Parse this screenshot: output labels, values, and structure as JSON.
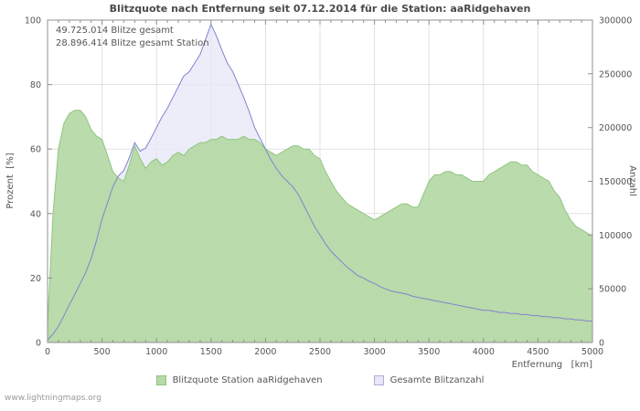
{
  "title": "Blitzquote nach Entfernung seit 07.12.2014 für die Station: aaRidgehaven",
  "watermark": "www.lightningmaps.org",
  "annotations": {
    "line1": "49.725.014 Blitze gesamt",
    "line2": "28.896.414 Blitze gesamt Station"
  },
  "legend": [
    {
      "label": "Blitzquote Station aaRidgehaven",
      "color": "#b6d9a7",
      "border": "#8fc681"
    },
    {
      "label": "Gesamte Blitzanzahl",
      "color": "#e9e7f8",
      "border": "#aeaed6"
    }
  ],
  "chart_data": {
    "type": "area",
    "title": "Blitzquote nach Entfernung seit 07.12.2014 für die Station: aaRidgehaven",
    "xlabel": "Entfernung   [km]",
    "ylabel_left": "Prozent  [%]",
    "ylabel_right": "Anzahl",
    "x_min": 0,
    "x_max": 5000,
    "y_left_min": 0,
    "y_left_max": 100,
    "y_right_min": 0,
    "y_right_max": 300000,
    "x_ticks": [
      0,
      500,
      1000,
      1500,
      2000,
      2500,
      3000,
      3500,
      4000,
      4500,
      5000
    ],
    "y_left_ticks": [
      0,
      20,
      40,
      60,
      80,
      100
    ],
    "y_right_ticks": [
      0,
      50000,
      100000,
      150000,
      200000,
      250000,
      300000
    ],
    "grid": true,
    "legend_position": "bottom",
    "x": [
      0,
      50,
      100,
      150,
      200,
      250,
      300,
      350,
      400,
      450,
      500,
      550,
      600,
      650,
      700,
      750,
      800,
      850,
      900,
      950,
      1000,
      1050,
      1100,
      1150,
      1200,
      1250,
      1300,
      1350,
      1400,
      1450,
      1500,
      1550,
      1600,
      1650,
      1700,
      1750,
      1800,
      1850,
      1900,
      1950,
      2000,
      2050,
      2100,
      2150,
      2200,
      2250,
      2300,
      2350,
      2400,
      2450,
      2500,
      2550,
      2600,
      2650,
      2700,
      2750,
      2800,
      2850,
      2900,
      2950,
      3000,
      3050,
      3100,
      3150,
      3200,
      3250,
      3300,
      3350,
      3400,
      3450,
      3500,
      3550,
      3600,
      3650,
      3700,
      3750,
      3800,
      3850,
      3900,
      3950,
      4000,
      4050,
      4100,
      4150,
      4200,
      4250,
      4300,
      4350,
      4400,
      4450,
      4500,
      4550,
      4600,
      4650,
      4700,
      4750,
      4800,
      4850,
      4900,
      4950,
      5000
    ],
    "series": [
      {
        "name": "Blitzquote Station aaRidgehaven",
        "axis": "left",
        "unit": "%",
        "values": [
          5,
          40,
          60,
          68,
          71,
          72,
          72,
          70,
          66,
          64,
          63,
          58,
          53,
          51,
          50,
          55,
          61,
          57,
          54,
          56,
          57,
          55,
          56,
          58,
          59,
          58,
          60,
          61,
          62,
          62,
          63,
          63,
          64,
          63,
          63,
          63,
          64,
          63,
          63,
          62,
          60,
          59,
          58,
          59,
          60,
          61,
          61,
          60,
          60,
          58,
          57,
          53,
          50,
          47,
          45,
          43,
          42,
          41,
          40,
          39,
          38,
          39,
          40,
          41,
          42,
          43,
          43,
          42,
          42,
          46,
          50,
          52,
          52,
          53,
          53,
          52,
          52,
          51,
          50,
          50,
          50,
          52,
          53,
          54,
          55,
          56,
          56,
          55,
          55,
          53,
          52,
          51,
          50,
          47,
          45,
          41,
          38,
          36,
          35,
          34,
          33
        ]
      },
      {
        "name": "Gesamte Blitzanzahl",
        "axis": "right",
        "unit": "count",
        "values": [
          2000,
          8000,
          15000,
          25000,
          35000,
          45000,
          55000,
          65000,
          78000,
          95000,
          115000,
          130000,
          145000,
          155000,
          160000,
          172000,
          186000,
          178000,
          181000,
          190000,
          200000,
          210000,
          218000,
          228000,
          238000,
          248000,
          252000,
          260000,
          268000,
          282000,
          296000,
          285000,
          272000,
          260000,
          252000,
          240000,
          228000,
          215000,
          200000,
          190000,
          180000,
          170000,
          162000,
          155000,
          150000,
          145000,
          138000,
          128000,
          118000,
          108000,
          100000,
          92000,
          85000,
          80000,
          75000,
          70000,
          66000,
          62000,
          60000,
          57000,
          55000,
          52000,
          50000,
          48000,
          47000,
          46000,
          45000,
          43000,
          42000,
          41000,
          40000,
          39000,
          38000,
          37000,
          36000,
          35000,
          34000,
          33000,
          32000,
          31000,
          30000,
          30000,
          29000,
          28000,
          28000,
          27000,
          27000,
          26000,
          26000,
          25000,
          25000,
          24000,
          24000,
          23000,
          23000,
          22000,
          22000,
          21000,
          21000,
          20000,
          20000
        ]
      }
    ],
    "colors": {
      "percent_fill": "#b6d9a7",
      "percent_edge": "#8fc681",
      "count_fill": "#e9e7f8",
      "count_line": "#8283cf",
      "grid": "#e0e0e0",
      "frame": "#909090"
    }
  }
}
